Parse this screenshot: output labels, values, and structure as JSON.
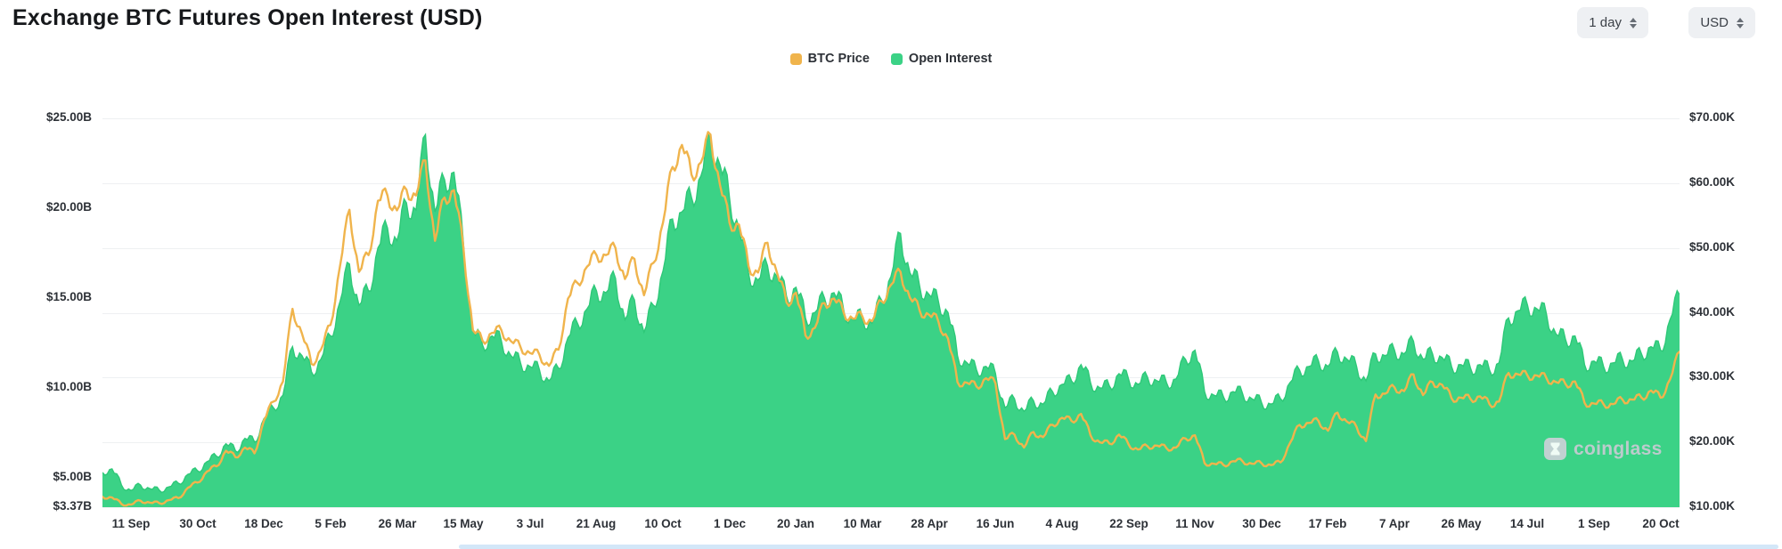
{
  "header": {
    "title": "Exchange BTC Futures Open Interest (USD)",
    "interval_label": "1 day",
    "currency_label": "USD"
  },
  "watermark": "coinglass",
  "chart_data": {
    "type": "area+line",
    "title": "Exchange BTC Futures Open Interest (USD)",
    "grid": true,
    "legend_position": "top-center",
    "left_axis": {
      "unit": "billions USD (Open Interest)",
      "ticks": [
        "$25.00B",
        "$20.00B",
        "$15.00B",
        "$10.00B",
        "$5.00B",
        "$3.37B"
      ],
      "values": [
        25,
        20,
        15,
        10,
        5,
        3.37
      ],
      "min": 3.37,
      "max": 25
    },
    "right_axis": {
      "unit": "thousands USD (BTC Price)",
      "ticks": [
        "$70.00K",
        "$60.00K",
        "$50.00K",
        "$40.00K",
        "$30.00K",
        "$20.00K",
        "$10.00K"
      ],
      "values": [
        70,
        60,
        50,
        40,
        30,
        20,
        10
      ],
      "min": 10,
      "max": 70
    },
    "x_ticks": {
      "labels": [
        "11 Sep",
        "30 Oct",
        "18 Dec",
        "5 Feb",
        "26 Mar",
        "15 May",
        "3 Jul",
        "21 Aug",
        "10 Oct",
        "1 Dec",
        "20 Jan",
        "10 Mar",
        "28 Apr",
        "16 Jun",
        "4 Aug",
        "22 Sep",
        "11 Nov",
        "30 Dec",
        "17 Feb",
        "7 Apr",
        "26 May",
        "14 Jul",
        "1 Sep",
        "20 Oct"
      ],
      "indices": [
        3,
        10,
        17,
        24,
        31,
        38,
        45,
        52,
        59,
        66,
        73,
        80,
        87,
        94,
        101,
        108,
        115,
        122,
        129,
        136,
        143,
        150,
        157,
        164
      ]
    },
    "series": [
      {
        "name": "BTC Price",
        "axis": "right",
        "style": "line",
        "unit": "K USD",
        "color": "#F0B44C",
        "values": [
          11.6,
          11.5,
          10.5,
          10.4,
          11.0,
          10.7,
          10.6,
          11.1,
          11.4,
          13.0,
          13.8,
          15.5,
          16.3,
          18.7,
          17.7,
          19.2,
          18.3,
          23.4,
          26.3,
          29.4,
          40.6,
          36.8,
          32.1,
          34.3,
          38.1,
          47.2,
          55.9,
          46.3,
          48.9,
          57.3,
          58.1,
          55.8,
          59.0,
          58.1,
          63.5,
          51.1,
          57.8,
          58.9,
          49.9,
          37.3,
          35.7,
          36.9,
          37.3,
          35.6,
          34.7,
          33.8,
          33.5,
          31.8,
          34.3,
          42.2,
          44.6,
          47.1,
          48.9,
          48.9,
          50.0,
          45.2,
          48.3,
          42.7,
          47.7,
          53.9,
          62.5,
          65.9,
          61.3,
          63.2,
          67.5,
          59.7,
          53.9,
          53.6,
          47.2,
          46.2,
          50.8,
          46.2,
          41.6,
          43.1,
          36.5,
          37.7,
          41.5,
          42.2,
          40.1,
          39.1,
          39.4,
          38.7,
          41.8,
          44.3,
          46.3,
          42.3,
          40.4,
          39.7,
          38.6,
          36.0,
          29.3,
          29.2,
          28.6,
          29.9,
          29.1,
          20.5,
          21.2,
          19.2,
          21.6,
          20.8,
          22.7,
          23.8,
          23.3,
          24.4,
          21.1,
          20.0,
          19.8,
          21.2,
          19.7,
          18.9,
          19.4,
          19.5,
          19.1,
          19.2,
          20.6,
          21.1,
          16.8,
          16.7,
          16.5,
          17.1,
          17.1,
          16.7,
          16.8,
          16.5,
          16.9,
          19.9,
          22.7,
          23.0,
          23.3,
          21.8,
          24.6,
          23.2,
          22.4,
          20.2,
          27.4,
          27.5,
          28.5,
          27.9,
          30.5,
          27.3,
          29.3,
          28.9,
          26.8,
          26.9,
          26.7,
          27.1,
          25.9,
          26.3,
          30.7,
          30.5,
          30.3,
          30.3,
          29.9,
          29.3,
          29.0,
          29.4,
          26.1,
          26.0,
          25.9,
          25.9,
          26.6,
          26.6,
          26.9,
          28.0,
          26.9,
          29.7,
          34.0
        ]
      },
      {
        "name": "Open Interest",
        "axis": "left",
        "style": "area",
        "unit": "B USD",
        "color": "#3BD286",
        "edge_color": "#2EC878",
        "values": [
          5.3,
          5.5,
          4.6,
          4.3,
          4.6,
          4.4,
          4.3,
          4.5,
          4.7,
          5.2,
          5.4,
          5.9,
          6.2,
          6.9,
          6.5,
          7.2,
          7.0,
          8.3,
          8.9,
          9.6,
          12.3,
          11.8,
          10.9,
          11.6,
          12.9,
          14.8,
          16.9,
          14.6,
          15.4,
          17.8,
          18.9,
          18.2,
          20.3,
          19.9,
          24.1,
          19.8,
          21.6,
          22.0,
          18.0,
          13.2,
          12.4,
          12.9,
          12.6,
          11.8,
          11.4,
          11.2,
          11.0,
          10.4,
          11.1,
          12.8,
          13.6,
          14.4,
          15.4,
          15.3,
          16.1,
          13.8,
          14.9,
          13.1,
          14.6,
          16.5,
          19.4,
          19.8,
          20.6,
          21.8,
          23.8,
          22.4,
          20.6,
          18.9,
          16.4,
          16.0,
          16.8,
          16.2,
          15.1,
          15.6,
          13.9,
          14.2,
          15.0,
          15.3,
          14.4,
          13.8,
          13.9,
          13.6,
          14.9,
          16.2,
          18.6,
          16.4,
          15.7,
          15.2,
          14.8,
          14.2,
          11.8,
          11.4,
          11.0,
          11.2,
          10.8,
          8.9,
          9.4,
          8.7,
          9.3,
          9.1,
          9.8,
          10.2,
          10.4,
          11.3,
          10.3,
          10.0,
          10.1,
          10.8,
          10.5,
          10.2,
          10.6,
          10.4,
          10.3,
          10.5,
          11.6,
          12.1,
          9.8,
          9.6,
          9.5,
          9.8,
          9.7,
          9.4,
          9.2,
          9.1,
          9.4,
          10.3,
          11.0,
          11.2,
          11.5,
          11.2,
          12.0,
          11.6,
          11.2,
          10.4,
          11.9,
          11.8,
          12.1,
          11.9,
          12.6,
          11.6,
          11.9,
          11.7,
          11.2,
          11.3,
          11.1,
          11.3,
          11.0,
          11.4,
          13.9,
          14.3,
          14.6,
          14.4,
          14.1,
          13.0,
          12.7,
          12.9,
          11.3,
          11.5,
          11.2,
          11.4,
          11.6,
          11.5,
          11.9,
          12.3,
          12.1,
          13.8,
          15.2
        ]
      }
    ]
  }
}
